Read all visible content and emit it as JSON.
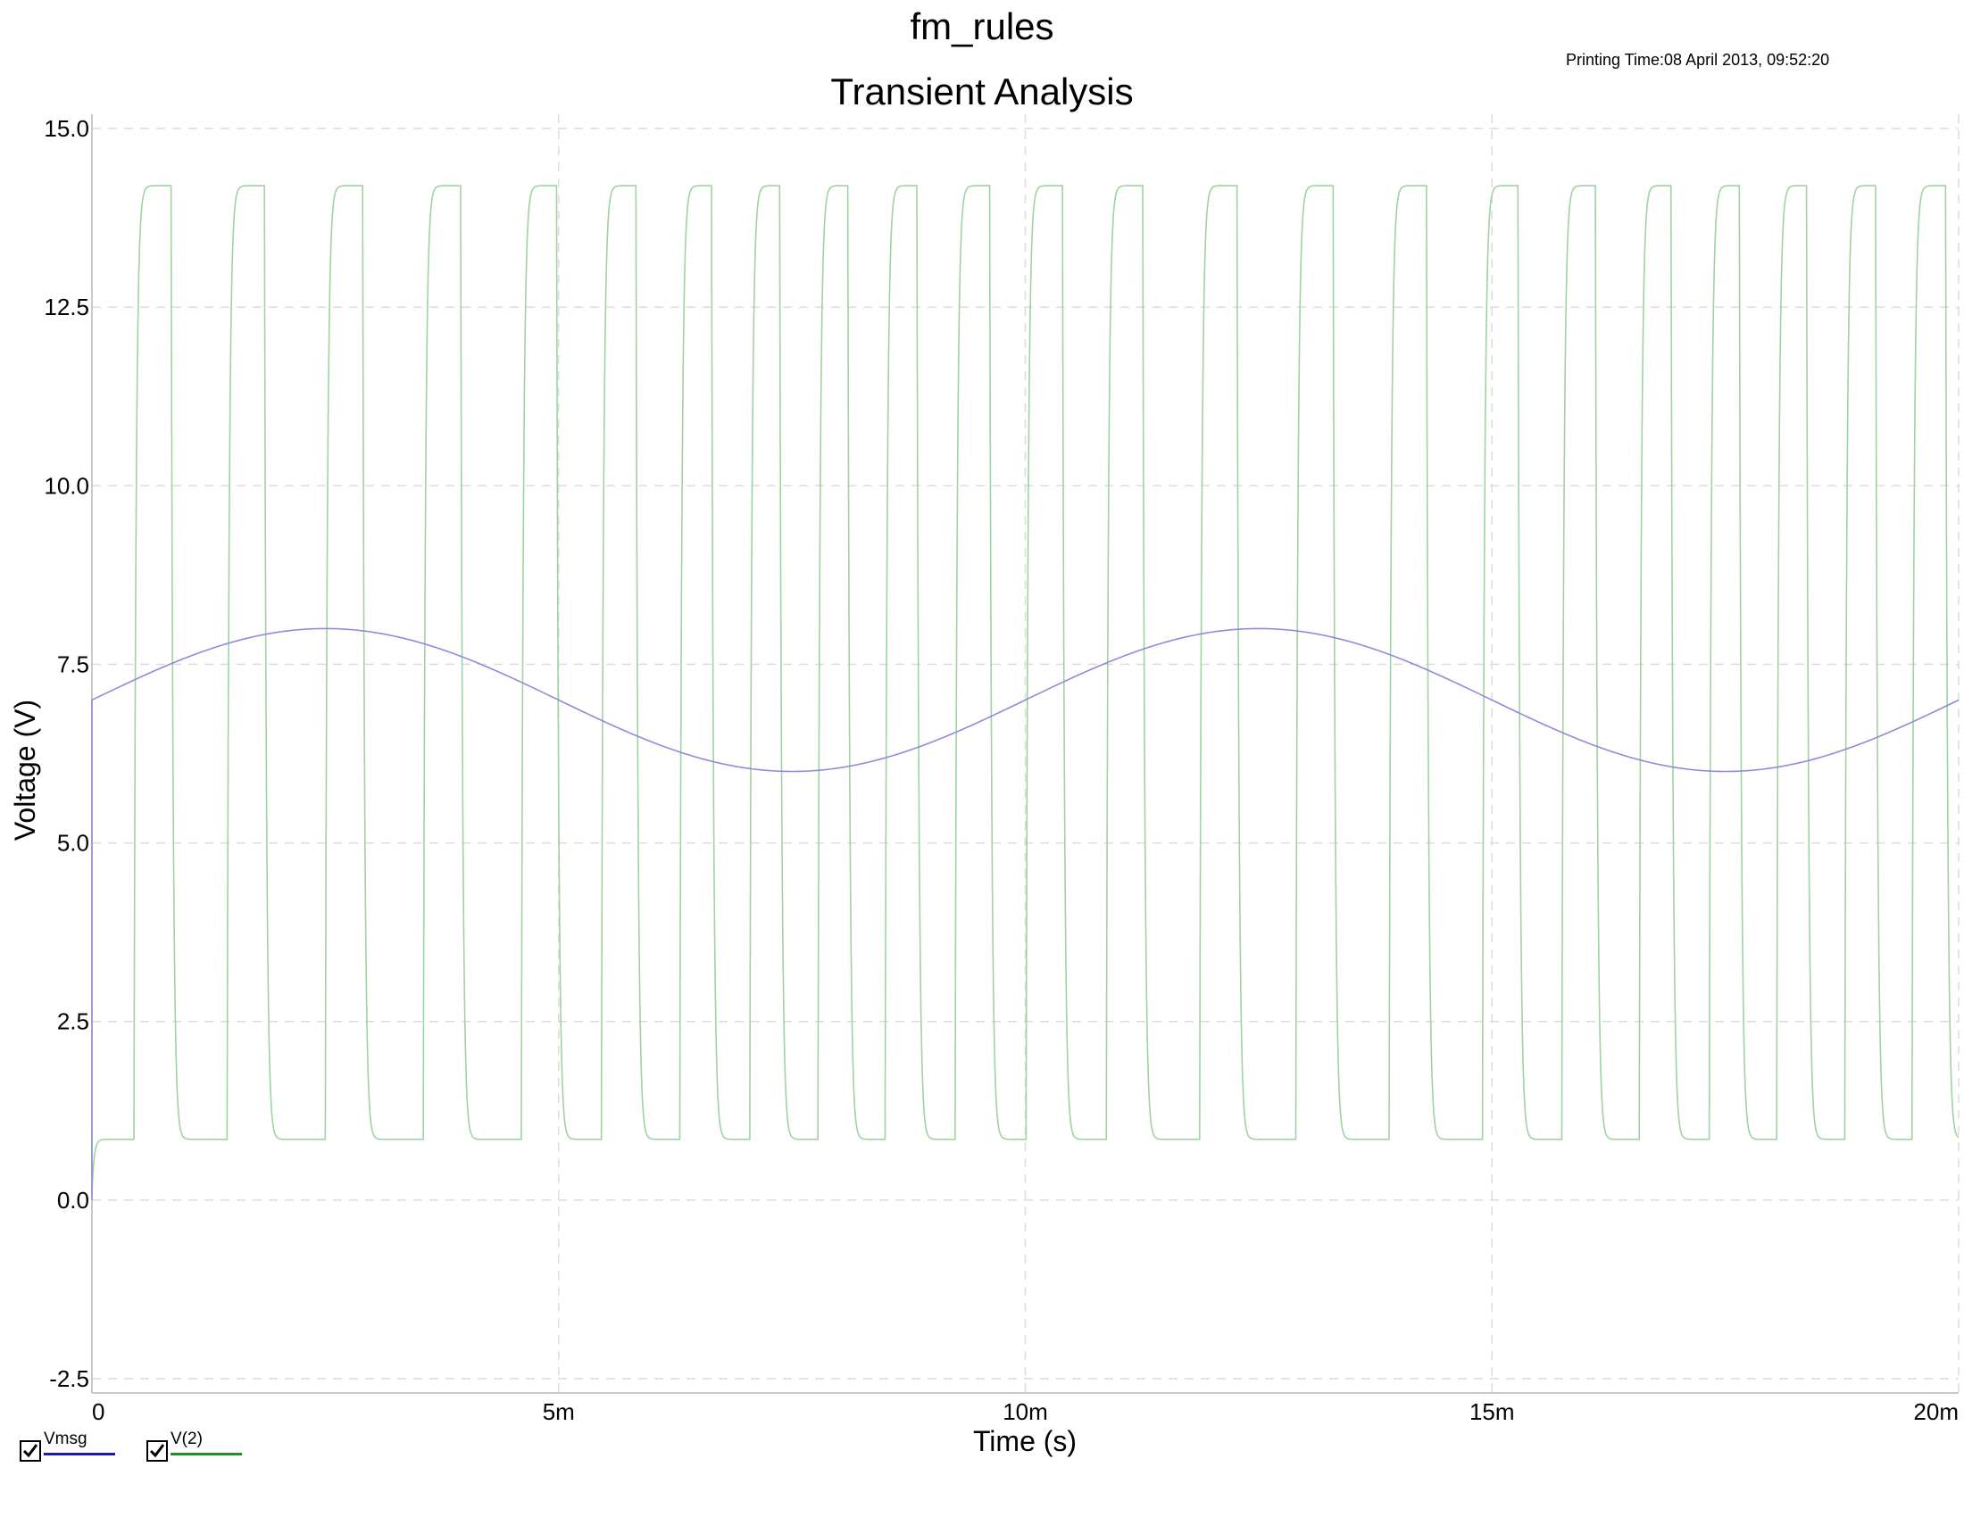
{
  "header": {
    "title": "fm_rules",
    "printing_time": "Printing Time:08 April 2013, 09:52:20"
  },
  "chart_data": {
    "type": "line",
    "title": "Transient Analysis",
    "xlabel": "Time (s)",
    "ylabel": "Voltage (V)",
    "xlim": [
      0,
      0.02
    ],
    "ylim": [
      -2.7,
      15.2
    ],
    "grid": true,
    "x_ticks": [
      {
        "value": 0,
        "label": "0"
      },
      {
        "value": 0.005,
        "label": "5m"
      },
      {
        "value": 0.01,
        "label": "10m"
      },
      {
        "value": 0.015,
        "label": "15m"
      },
      {
        "value": 0.02,
        "label": "20m"
      }
    ],
    "y_ticks": [
      {
        "value": -2.5,
        "label": "-2.5"
      },
      {
        "value": 0,
        "label": "0.0"
      },
      {
        "value": 2.5,
        "label": "2.5"
      },
      {
        "value": 5,
        "label": "5.0"
      },
      {
        "value": 7.5,
        "label": "7.5"
      },
      {
        "value": 10,
        "label": "10.0"
      },
      {
        "value": 12.5,
        "label": "12.5"
      },
      {
        "value": 15,
        "label": "15.0"
      }
    ],
    "series": [
      {
        "name": "Vmsg",
        "color": "#8c8cdc",
        "legend_color": "#1a1aa6",
        "kind": "sine",
        "offset": 7.0,
        "amplitude": 1.0,
        "frequency_hz": 100,
        "x": [
          0,
          0.0025,
          0.005,
          0.0075,
          0.01,
          0.0125,
          0.015,
          0.0175,
          0.02
        ],
        "y": [
          7.0,
          8.0,
          7.0,
          6.0,
          7.0,
          8.0,
          7.0,
          6.0,
          7.0
        ]
      },
      {
        "name": "V(2)",
        "color": "#9fd39f",
        "legend_color": "#1f8f1f",
        "kind": "square",
        "high": 14.2,
        "low": 0.85,
        "high_intervals": [
          [
            0.00045,
            0.00085
          ],
          [
            0.00145,
            0.00185
          ],
          [
            0.0025,
            0.0029
          ],
          [
            0.00355,
            0.00395
          ],
          [
            0.0046,
            0.00498
          ],
          [
            0.00546,
            0.00583
          ],
          [
            0.0063,
            0.00664
          ],
          [
            0.00705,
            0.00737
          ],
          [
            0.00778,
            0.0081
          ],
          [
            0.0085,
            0.00884
          ],
          [
            0.00925,
            0.00962
          ],
          [
            0.01001,
            0.0104
          ],
          [
            0.01087,
            0.01126
          ],
          [
            0.01187,
            0.01227
          ],
          [
            0.0129,
            0.0133
          ],
          [
            0.0139,
            0.0143
          ],
          [
            0.0149,
            0.01528
          ],
          [
            0.01575,
            0.01611
          ],
          [
            0.01658,
            0.01692
          ],
          [
            0.01733,
            0.01765
          ],
          [
            0.01805,
            0.01837
          ],
          [
            0.01878,
            0.01911
          ],
          [
            0.0195,
            0.01986
          ]
        ]
      }
    ]
  },
  "legend": {
    "items": [
      {
        "label": "Vmsg",
        "checked": true
      },
      {
        "label": "V(2)",
        "checked": true
      }
    ]
  }
}
